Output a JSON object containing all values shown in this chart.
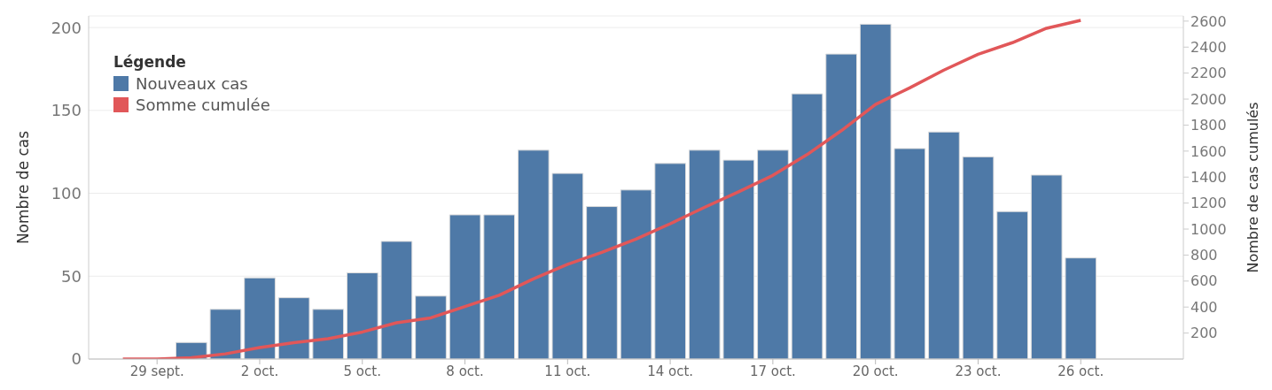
{
  "chart_data": {
    "type": "bar",
    "ylabel": "Nombre de cas",
    "y2label": "Nombre de cas cumulés",
    "legend_title": "Légende",
    "legend": "top left",
    "grid": "y",
    "xlim": [
      "--09-27",
      "--10-29"
    ],
    "xticks": [
      {
        "value": "--09-29",
        "label": "29 sept."
      },
      {
        "value": "--10-02",
        "label": "2 oct."
      },
      {
        "value": "--10-05",
        "label": "5 oct."
      },
      {
        "value": "--10-08",
        "label": "8 oct."
      },
      {
        "value": "--10-11",
        "label": "11 oct."
      },
      {
        "value": "--10-14",
        "label": "14 oct."
      },
      {
        "value": "--10-17",
        "label": "17 oct."
      },
      {
        "value": "--10-20",
        "label": "20 oct."
      },
      {
        "value": "--10-23",
        "label": "23 oct."
      },
      {
        "value": "--10-26",
        "label": "26 oct."
      }
    ],
    "ylim": [
      0,
      207
    ],
    "yticks": [
      0,
      50,
      100,
      150,
      200
    ],
    "y2lim": [
      0,
      2640
    ],
    "y2ticks": [
      200,
      400,
      600,
      800,
      1000,
      1200,
      1400,
      1600,
      1800,
      2000,
      2200,
      2400,
      2600
    ],
    "series": [
      {
        "name": "Nouveaux cas",
        "color": "#4e79a7",
        "x": [
          "--09-30",
          "--10-01",
          "--10-02",
          "--10-03",
          "--10-04",
          "--10-05",
          "--10-06",
          "--10-07",
          "--10-08",
          "--10-09",
          "--10-10",
          "--10-11",
          "--10-12",
          "--10-13",
          "--10-14",
          "--10-15",
          "--10-16",
          "--10-17",
          "--10-18",
          "--10-19",
          "--10-20",
          "--10-21",
          "--10-22",
          "--10-23",
          "--10-24",
          "--10-25",
          "--10-26"
        ],
        "values": [
          10,
          30,
          49,
          37,
          30,
          52,
          71,
          38,
          87,
          87,
          126,
          112,
          92,
          102,
          118,
          126,
          120,
          126,
          160,
          184,
          202,
          127,
          137,
          122,
          89,
          111,
          61
        ]
      },
      {
        "name": "Somme cumulée",
        "type": "line",
        "axis": "y2",
        "color": "#e15759",
        "x": [
          "--09-28",
          "--09-29",
          "--09-30",
          "--10-01",
          "--10-02",
          "--10-03",
          "--10-04",
          "--10-05",
          "--10-06",
          "--10-07",
          "--10-08",
          "--10-09",
          "--10-10",
          "--10-11",
          "--10-12",
          "--10-13",
          "--10-14",
          "--10-15",
          "--10-16",
          "--10-17",
          "--10-18",
          "--10-19",
          "--10-20",
          "--10-21",
          "--10-22",
          "--10-23",
          "--10-24",
          "--10-25",
          "--10-26"
        ],
        "values": [
          0,
          0,
          10,
          40,
          89,
          126,
          156,
          208,
          279,
          317,
          404,
          491,
          617,
          729,
          821,
          923,
          1041,
          1167,
          1287,
          1413,
          1573,
          1757,
          1959,
          2086,
          2223,
          2345,
          2434,
          2545,
          2606
        ]
      }
    ]
  }
}
